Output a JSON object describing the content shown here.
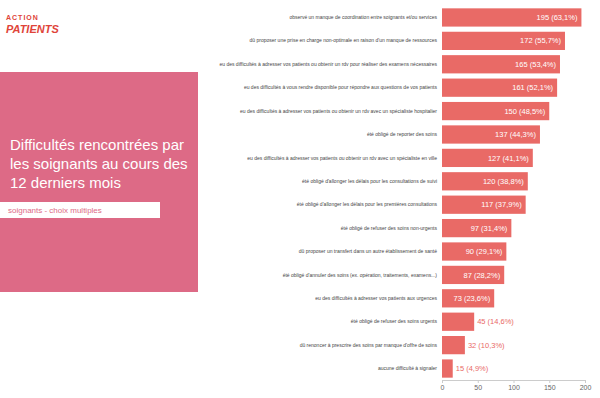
{
  "chart_data": {
    "type": "bar",
    "orientation": "horizontal",
    "title": "Difficultés rencontrées par les soignants au cours des 12 derniers mois",
    "subtitle": "soignants - choix multiples",
    "annotations": [
      "ACTION",
      "PATIENTS"
    ],
    "categories": [
      "observé un manque de coordination entre soignants et/ou services",
      "dû proposer une prise en charge non-optimale en raison d'un manque de ressources",
      "eu des difficultés à adresser vos patients ou obtenir un rdv pour réaliser des examens nécessaires",
      "eu des difficultés à vous rendre disponible pour répondre aux questions de vos patients",
      "eu des difficultés à adresser vos patients ou obtenir un rdv avec un spécialiste hospitalier",
      "été obligé de reporter des soins",
      "eu des difficultés à adresser vos patients ou obtenir un rdv avec un spécialiste en ville",
      "été obligé d'allonger les délais pour les consultations de suivi",
      "été obligé d'allonger les délais pour les premières consultations",
      "été obligé de refuser des soins non-urgents",
      "dû proposer un transfert dans un autre établissement de santé",
      "été obligé d'annuler des soins (ex. opération, traitements, examens...)",
      "eu des difficultés à adresser vos patients aux urgences",
      "été obligé de refuser des soins urgents",
      "dû renoncer à prescrire des soins par manque d'offre de soins",
      "aucune difficulté à signaler"
    ],
    "values": [
      195,
      172,
      165,
      161,
      150,
      137,
      127,
      120,
      117,
      97,
      90,
      87,
      73,
      45,
      32,
      15
    ],
    "value_labels": [
      "195 (63,1%)",
      "172 (55,7%)",
      "165 (53,4%)",
      "161 (52,1%)",
      "150 (48,5%)",
      "137 (44,3%)",
      "127 (41,1%)",
      "120 (38,8%)",
      "117 (37,9%)",
      "97 (31,4%)",
      "90 (29,1%)",
      "87 (28,2%)",
      "73 (23,6%)",
      "45 (14,6%)",
      "32 (10,3%)",
      "15 (4,9%)"
    ],
    "color": "#e96a66",
    "xlim": [
      0,
      200
    ],
    "xticks": [
      0,
      50,
      100,
      150,
      200
    ],
    "grid": false,
    "data_labels": true
  }
}
